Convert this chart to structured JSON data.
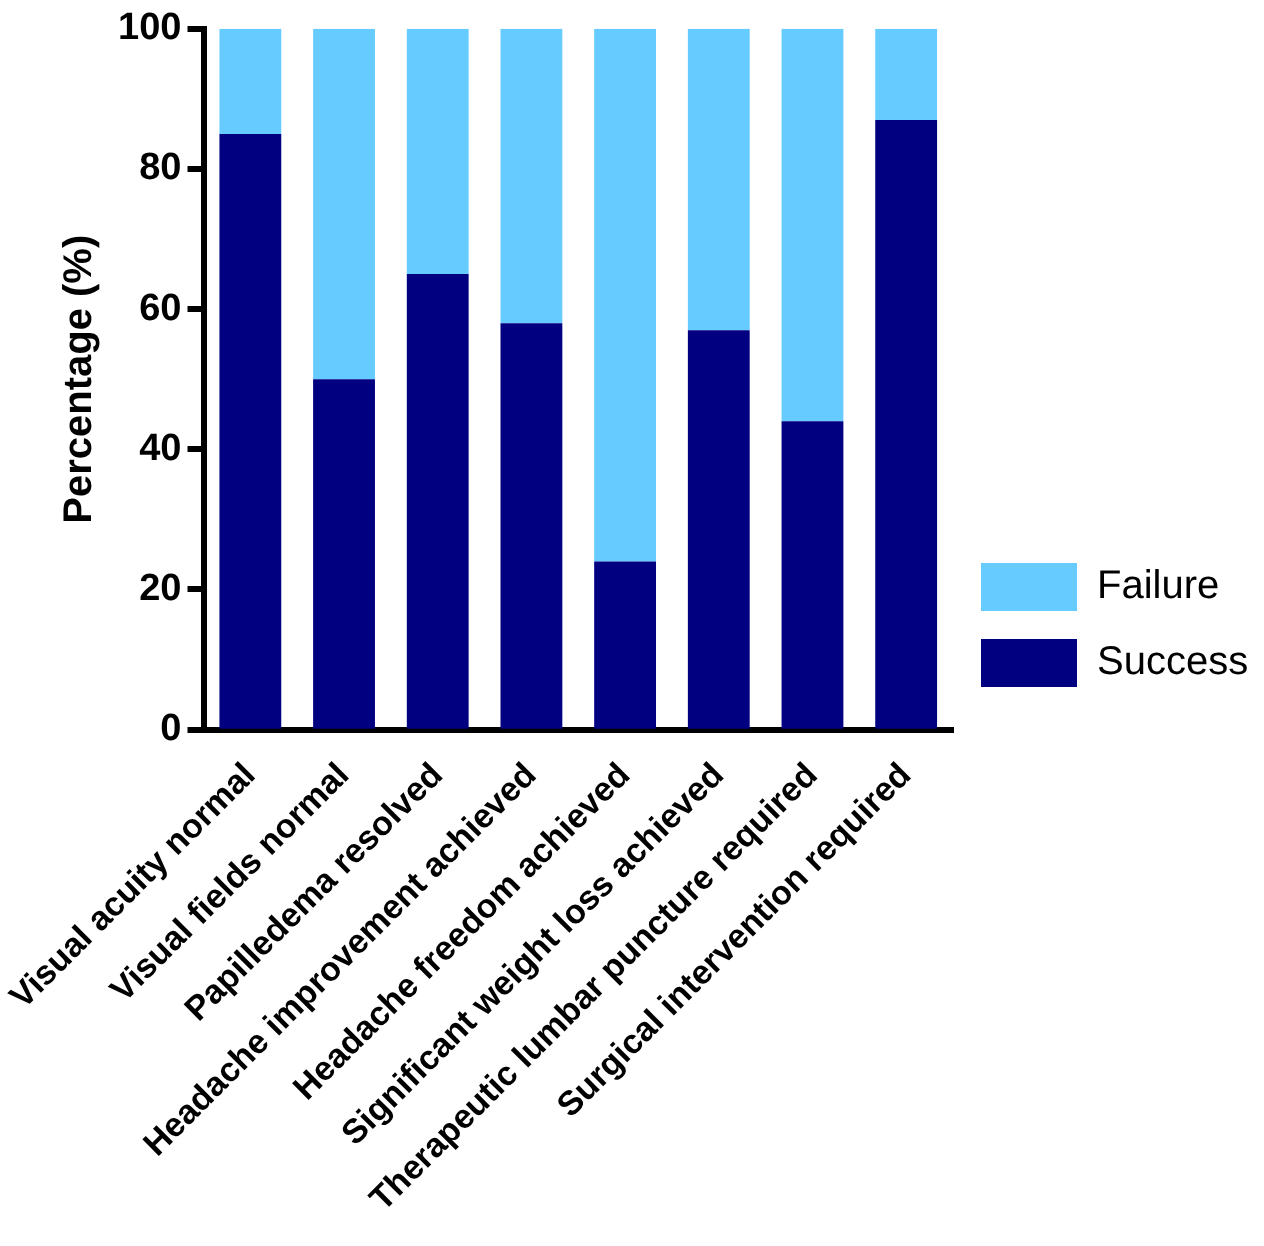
{
  "chart_data": {
    "type": "bar",
    "stacked": true,
    "ylabel": "Percentage (%)",
    "categories": [
      "Visual acuity normal",
      "Visual fields normal",
      "Papilledema resolved",
      "Headache improvement achieved",
      "Headache freedom achieved",
      "Significant weight loss achieved",
      "Therapeutic lumbar puncture required",
      "Surgical intervention required"
    ],
    "series": [
      {
        "name": "Success",
        "color": "#000080",
        "values": [
          85,
          50,
          65,
          58,
          24,
          57,
          44,
          87
        ]
      },
      {
        "name": "Failure",
        "color": "#66ccff",
        "values": [
          15,
          50,
          35,
          42,
          76,
          43,
          56,
          13
        ]
      }
    ],
    "ylim": [
      0,
      100
    ],
    "yticks": [
      0,
      20,
      40,
      60,
      80,
      100
    ],
    "grid": false,
    "legend": "right"
  }
}
